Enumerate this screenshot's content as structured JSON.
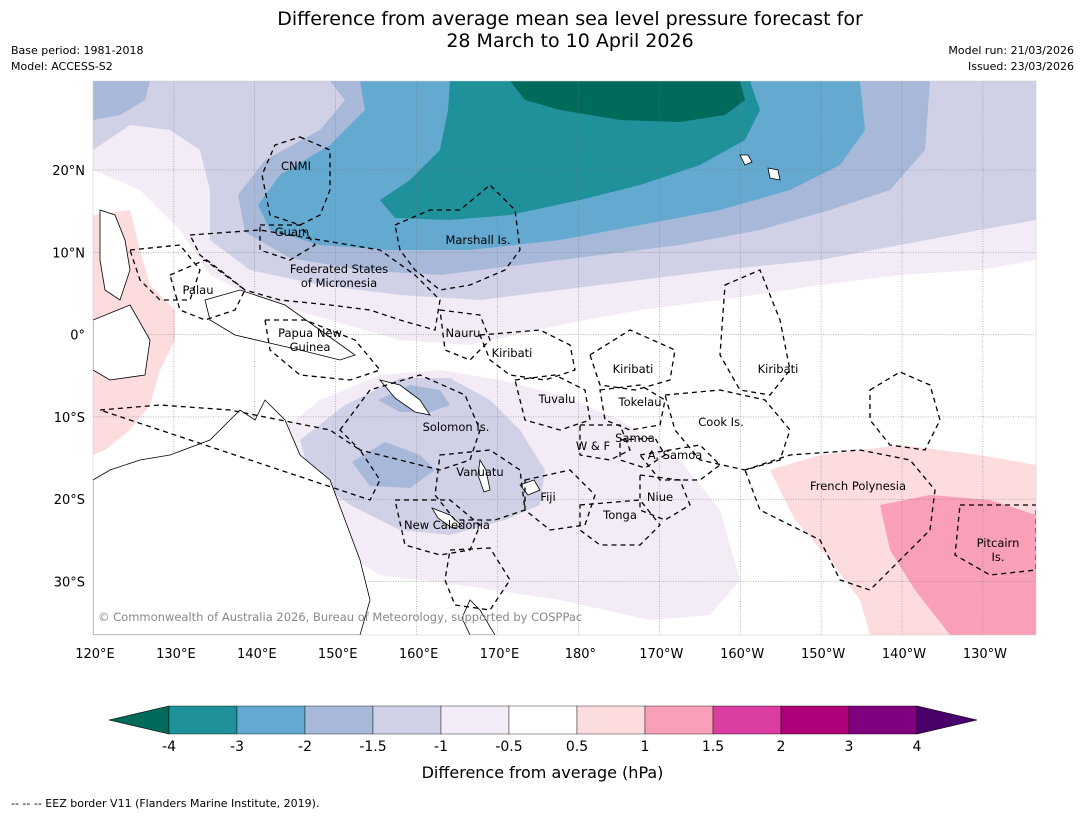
{
  "title": {
    "line1": "Difference from average mean sea level pressure forecast for",
    "line2": "28 March to 10 April 2026"
  },
  "meta_left": {
    "base_period": "Base period: 1981-2018",
    "model": "Model: ACCESS-S2"
  },
  "meta_right": {
    "model_run": "Model run: 21/03/2026",
    "issued": "Issued: 23/03/2026"
  },
  "map": {
    "lon_labels": [
      "120°E",
      "130°E",
      "140°E",
      "150°E",
      "160°E",
      "170°E",
      "180°",
      "170°W",
      "160°W",
      "150°W",
      "140°W",
      "130°W"
    ],
    "lat_labels": [
      "20°N",
      "10°N",
      "0°",
      "10°S",
      "20°S",
      "30°S"
    ],
    "region_labels": [
      {
        "text": "CNMI"
      },
      {
        "text": "Guam"
      },
      {
        "text": "Marshall Is."
      },
      {
        "text": "Federated States"
      },
      {
        "text": "of Micronesia"
      },
      {
        "text": "Palau"
      },
      {
        "text": "Papua New"
      },
      {
        "text": "Guinea"
      },
      {
        "text": "Nauru"
      },
      {
        "text": "Kiribati"
      },
      {
        "text": "Kiribati"
      },
      {
        "text": "Kiribati"
      },
      {
        "text": "Tuvalu"
      },
      {
        "text": "Tokelau"
      },
      {
        "text": "Cook Is."
      },
      {
        "text": "Solomon Is."
      },
      {
        "text": "Samoa"
      },
      {
        "text": "W & F"
      },
      {
        "text": "A. Samoa"
      },
      {
        "text": "Vanuatu"
      },
      {
        "text": "Fiji"
      },
      {
        "text": "Niue"
      },
      {
        "text": "Tonga"
      },
      {
        "text": "New Caledonia"
      },
      {
        "text": "French Polynesia"
      },
      {
        "text": "Pitcairn"
      },
      {
        "text": "Is."
      }
    ],
    "copyright": "© Commonwealth of Australia 2026, Bureau of Meteorology, supported by COSPPac"
  },
  "colorbar": {
    "ticks": [
      "-4",
      "-3",
      "-2",
      "-1.5",
      "-1",
      "-0.5",
      "0.5",
      "1",
      "1.5",
      "2",
      "3",
      "4"
    ],
    "colors": [
      "#006b5a",
      "#1f919b",
      "#64a9d0",
      "#a7b8d8",
      "#d0d1e7",
      "#f3ecf6",
      "#ffffff",
      "#fcdcdc",
      "#f9a0b8",
      "#dc3da0",
      "#ae0078",
      "#800080",
      "#4a006a"
    ],
    "label": "Difference from average (hPa)"
  },
  "footnote": "--  --  -- EEZ border V11 (Flanders Marine Institute, 2019)."
}
